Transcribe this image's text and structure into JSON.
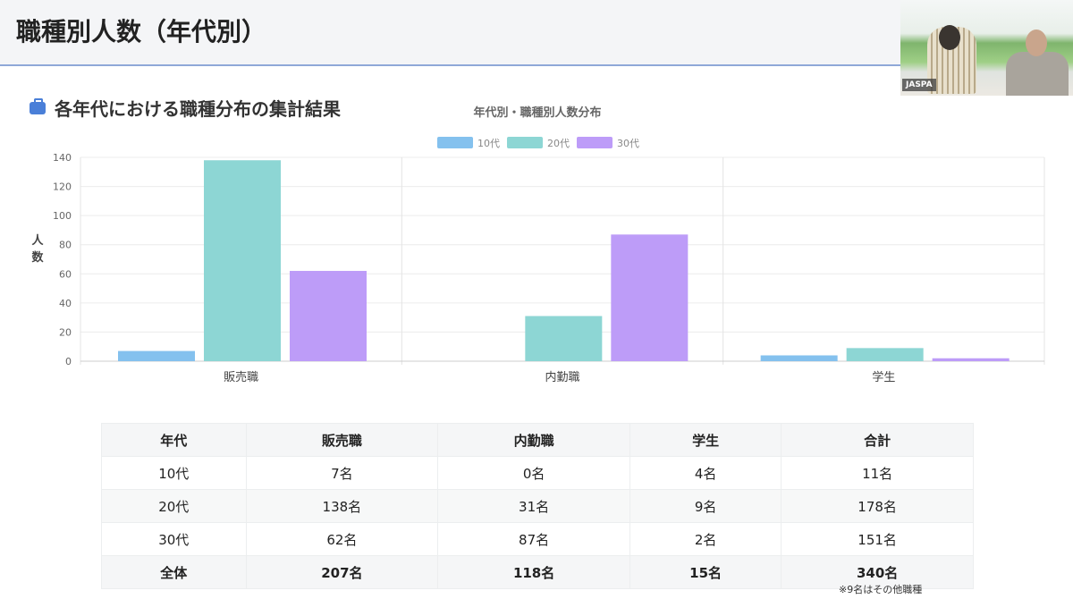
{
  "header": {
    "title": "職種別人数（年代別）"
  },
  "video": {
    "label": "JASPA"
  },
  "section": {
    "title": "各年代における職種分布の集計結果",
    "icon": "briefcase-icon"
  },
  "chart_data": {
    "type": "bar",
    "title": "年代別・職種別人数分布",
    "categories": [
      "販売職",
      "内勤職",
      "学生"
    ],
    "series": [
      {
        "name": "10代",
        "values": [
          7,
          0,
          4
        ],
        "color": "#84c1ee"
      },
      {
        "name": "20代",
        "values": [
          138,
          31,
          9
        ],
        "color": "#8dd6d4"
      },
      {
        "name": "30代",
        "values": [
          62,
          87,
          2
        ],
        "color": "#bd9cf8"
      }
    ],
    "ylabel": "人数",
    "ylim": [
      0,
      140
    ],
    "yticks": [
      0,
      20,
      40,
      60,
      80,
      100,
      120,
      140
    ],
    "legend": "top",
    "grid": true
  },
  "table": {
    "headers": [
      "年代",
      "販売職",
      "内勤職",
      "学生",
      "合計"
    ],
    "rows": [
      [
        "10代",
        "7名",
        "0名",
        "4名",
        "11名"
      ],
      [
        "20代",
        "138名",
        "31名",
        "9名",
        "178名"
      ],
      [
        "30代",
        "62名",
        "87名",
        "2名",
        "151名"
      ]
    ],
    "total": [
      "全体",
      "207名",
      "118名",
      "15名",
      "340名"
    ]
  },
  "note": "※9名はその他職種"
}
